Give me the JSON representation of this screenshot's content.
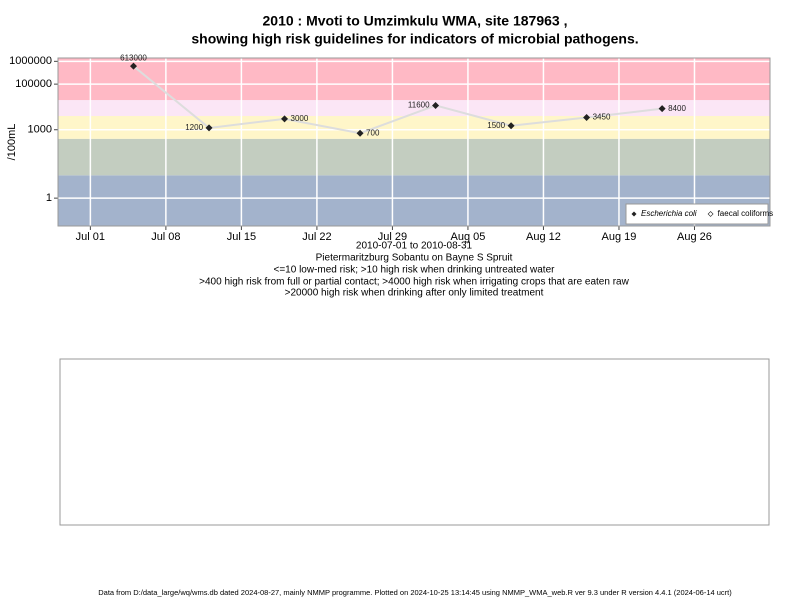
{
  "chart_data": {
    "type": "line",
    "title": [
      "2010 : Mvoti to Umzimkulu WMA, site 187963 ,",
      "showing high risk guidelines for indicators of microbial pathogens."
    ],
    "x_label": [
      "2010-07-01 to 2010-08-31",
      "Pietermaritzburg Sobantu on Bayne S Spruit",
      "<=10 low-med risk; >10 high risk when drinking untreated water",
      ">400 high risk from full or partial contact; >4000 high risk when irrigating crops that are eaten raw",
      ">20000 high risk when drinking after only limited treatment"
    ],
    "y_label": "/100mL",
    "x": [
      "2010-07-05",
      "2010-07-12",
      "2010-07-19",
      "2010-07-26",
      "2010-08-02",
      "2010-08-09",
      "2010-08-16",
      "2010-08-23"
    ],
    "series": [
      {
        "name": "Escherichia coli",
        "color": "#222222",
        "line_color": "#dddddd",
        "values": [
          613000,
          1200,
          3000,
          700,
          11600,
          1500,
          3450,
          8400
        ]
      },
      {
        "name": "faecal coliforms",
        "color": "#ffffff",
        "values": [
          null,
          null,
          null,
          null,
          null,
          null,
          null,
          null
        ]
      }
    ],
    "xlim": [
      "2010-06-28",
      "2010-09-02"
    ],
    "xticks": [
      {
        "value": "2010-07-01",
        "label": "Jul 01"
      },
      {
        "value": "2010-07-08",
        "label": "Jul 08"
      },
      {
        "value": "2010-07-15",
        "label": "Jul 15"
      },
      {
        "value": "2010-07-22",
        "label": "Jul 22"
      },
      {
        "value": "2010-07-29",
        "label": "Jul 29"
      },
      {
        "value": "2010-08-05",
        "label": "Aug 05"
      },
      {
        "value": "2010-08-12",
        "label": "Aug 12"
      },
      {
        "value": "2010-08-19",
        "label": "Aug 19"
      },
      {
        "value": "2010-08-26",
        "label": "Aug 26"
      }
    ],
    "ylim": [
      0.06,
      1400000
    ],
    "yticks": [
      1,
      1000,
      100000,
      1000000
    ],
    "log_y": true,
    "grid": true,
    "legend": "bottom-right",
    "risk_bands": {
      "thresholds": [
        10,
        400,
        4000,
        20000
      ],
      "colors": [
        "#a3b3cc",
        "#c3cdc0",
        "#fff6c9",
        "#fbe6f6",
        "#ffb9c5"
      ]
    }
  },
  "footer": "Data from D:/data_large/wq/wms.db dated 2024-08-27, mainly NMMP programme. Plotted on 2024-10-25 13:14:45 using NMMP_WMA_web.R ver 9.3 under R version 4.4.1 (2024-06-14 ucrt)"
}
